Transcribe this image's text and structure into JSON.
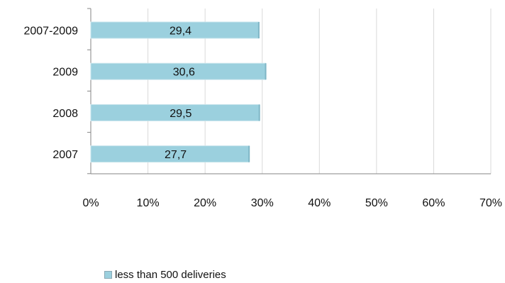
{
  "chart_data": {
    "type": "bar",
    "orientation": "horizontal",
    "categories": [
      "2007-2009",
      "2009",
      "2008",
      "2007"
    ],
    "series": [
      {
        "name": "less than 500 deliveries",
        "values": [
          29.4,
          30.6,
          29.5,
          27.7
        ],
        "data_labels": [
          "29,4",
          "30,6",
          "29,5",
          "27,7"
        ],
        "color": "#9bd0de"
      }
    ],
    "x_ticks": [
      0,
      10,
      20,
      30,
      40,
      50,
      60,
      70
    ],
    "x_tick_labels": [
      "0%",
      "10%",
      "20%",
      "30%",
      "40%",
      "50%",
      "60%",
      "70%"
    ],
    "xlim": [
      0,
      70
    ],
    "grid": true,
    "legend_position": "bottom",
    "title": "",
    "xlabel": "",
    "ylabel": ""
  }
}
